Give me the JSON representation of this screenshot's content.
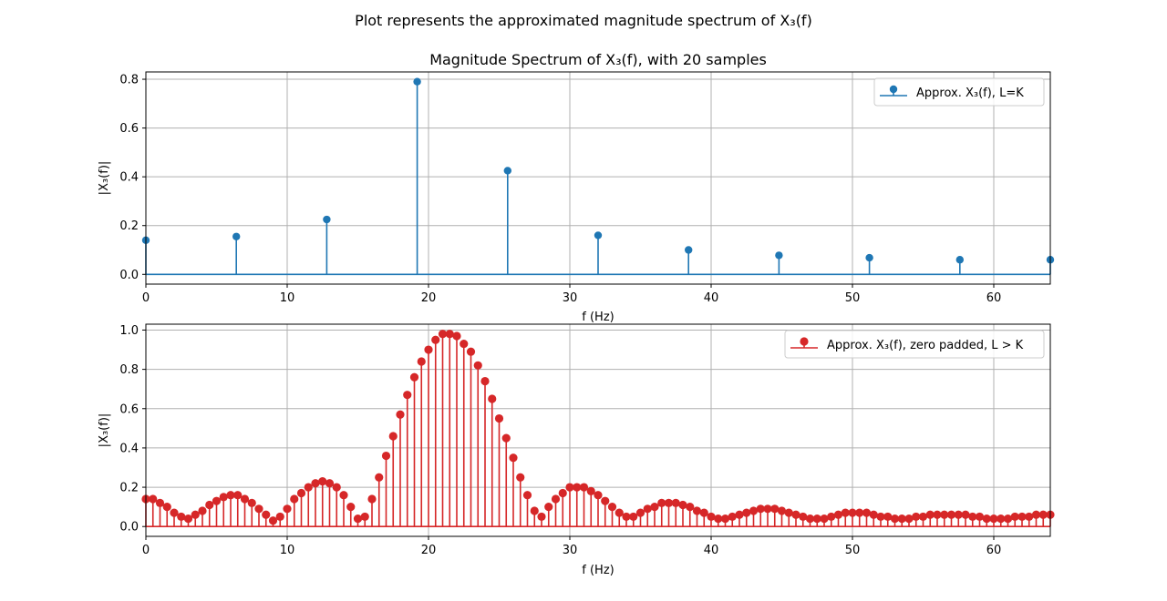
{
  "figure": {
    "suptitle": "Plot represents the approximated magnitude spectrum of X₃(f)"
  },
  "chart_data": [
    {
      "type": "stem",
      "title": "Magnitude Spectrum of X₃(f), with 20 samples",
      "xlabel": "f (Hz)",
      "ylabel": "|X₃(f)|",
      "xlim": [
        0,
        64
      ],
      "ylim": [
        -0.04,
        0.83
      ],
      "xticks": [
        0,
        10,
        20,
        30,
        40,
        50,
        60
      ],
      "yticks": [
        0.0,
        0.2,
        0.4,
        0.6,
        0.8
      ],
      "ytick_labels": [
        "0.0",
        "0.2",
        "0.4",
        "0.6",
        "0.8"
      ],
      "grid": true,
      "legend_position": "top-right",
      "series": [
        {
          "name": "Approx. X₃(f), L=K",
          "color": "#1f77b4",
          "x": [
            0,
            6.4,
            12.8,
            19.2,
            25.6,
            32.0,
            38.4,
            44.8,
            51.2,
            57.6,
            64.0
          ],
          "y": [
            0.14,
            0.155,
            0.225,
            0.79,
            0.425,
            0.16,
            0.1,
            0.078,
            0.068,
            0.06,
            0.06
          ]
        }
      ]
    },
    {
      "type": "stem",
      "title": "",
      "xlabel": "f (Hz)",
      "ylabel": "|X₃(f)|",
      "xlim": [
        0,
        64
      ],
      "ylim": [
        -0.05,
        1.03
      ],
      "xticks": [
        0,
        10,
        20,
        30,
        40,
        50,
        60
      ],
      "yticks": [
        0.0,
        0.2,
        0.4,
        0.6,
        0.8,
        1.0
      ],
      "ytick_labels": [
        "0.0",
        "0.2",
        "0.4",
        "0.6",
        "0.8",
        "1.0"
      ],
      "grid": true,
      "legend_position": "top-right",
      "series": [
        {
          "name": "Approx. X₃(f), zero padded, L > K",
          "color": "#d62728",
          "x_start": 0,
          "x_step": 0.5,
          "y": [
            0.14,
            0.14,
            0.12,
            0.1,
            0.07,
            0.05,
            0.04,
            0.06,
            0.08,
            0.11,
            0.13,
            0.15,
            0.16,
            0.16,
            0.14,
            0.12,
            0.09,
            0.06,
            0.03,
            0.05,
            0.09,
            0.14,
            0.17,
            0.2,
            0.22,
            0.23,
            0.22,
            0.2,
            0.16,
            0.1,
            0.04,
            0.05,
            0.14,
            0.25,
            0.36,
            0.46,
            0.57,
            0.67,
            0.76,
            0.84,
            0.9,
            0.95,
            0.98,
            0.98,
            0.97,
            0.93,
            0.89,
            0.82,
            0.74,
            0.65,
            0.55,
            0.45,
            0.35,
            0.25,
            0.16,
            0.08,
            0.05,
            0.1,
            0.14,
            0.17,
            0.2,
            0.2,
            0.2,
            0.18,
            0.16,
            0.13,
            0.1,
            0.07,
            0.05,
            0.05,
            0.07,
            0.09,
            0.1,
            0.12,
            0.12,
            0.12,
            0.11,
            0.1,
            0.08,
            0.07,
            0.05,
            0.04,
            0.04,
            0.05,
            0.06,
            0.07,
            0.08,
            0.09,
            0.09,
            0.09,
            0.08,
            0.07,
            0.06,
            0.05,
            0.04,
            0.04,
            0.04,
            0.05,
            0.06,
            0.07,
            0.07,
            0.07,
            0.07,
            0.06,
            0.05,
            0.05,
            0.04,
            0.04,
            0.04,
            0.05,
            0.05,
            0.06,
            0.06,
            0.06,
            0.06,
            0.06,
            0.06,
            0.05,
            0.05,
            0.04,
            0.04,
            0.04,
            0.04,
            0.05,
            0.05,
            0.05,
            0.06,
            0.06,
            0.06
          ]
        }
      ]
    }
  ]
}
